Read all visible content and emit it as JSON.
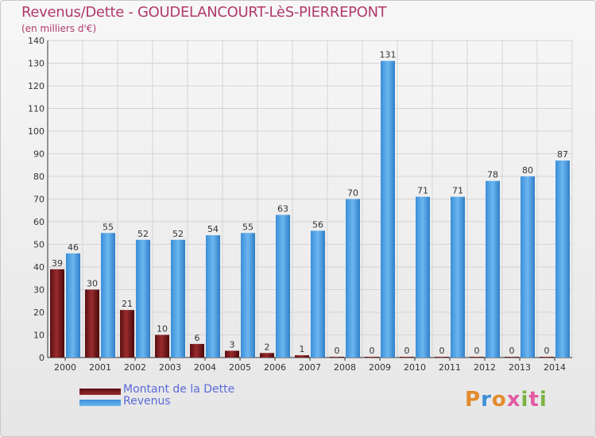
{
  "chart_data": {
    "type": "bar",
    "title": "Revenus/Dette - GOUDELANCOURT-LèS-PIERREPONT",
    "subtitle": "(en milliers d'€)",
    "categories": [
      "2000",
      "2001",
      "2002",
      "2003",
      "2004",
      "2005",
      "2006",
      "2007",
      "2008",
      "2009",
      "2010",
      "2011",
      "2012",
      "2013",
      "2014"
    ],
    "series": [
      {
        "name": "Montant de la Dette",
        "color": "#8b1a1a",
        "values": [
          39,
          30,
          21,
          10,
          6,
          3,
          2,
          1,
          0,
          0,
          0,
          0,
          0,
          0,
          0
        ]
      },
      {
        "name": "Revenus",
        "color": "#3d95dc",
        "values": [
          46,
          55,
          52,
          52,
          54,
          55,
          63,
          56,
          70,
          131,
          71,
          71,
          78,
          80,
          87
        ]
      }
    ],
    "ylim": [
      0,
      140
    ],
    "yticks": [
      0,
      10,
      20,
      30,
      40,
      50,
      60,
      70,
      80,
      90,
      100,
      110,
      120,
      130,
      140
    ],
    "grid": true,
    "legend": "bottom-left"
  },
  "logo": {
    "text": "Proxiti"
  }
}
